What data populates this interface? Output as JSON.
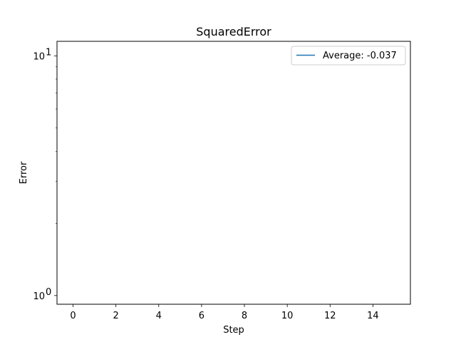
{
  "chart_data": {
    "type": "line",
    "title": "SquaredError",
    "xlabel": "Step",
    "ylabel": "Error",
    "yscale": "log",
    "xlim": [
      -0.75,
      15.75
    ],
    "ylim": [
      0.92,
      11.5
    ],
    "x_ticks": [
      0,
      2,
      4,
      6,
      8,
      10,
      12,
      14
    ],
    "x_tick_labels": [
      "0",
      "2",
      "4",
      "6",
      "8",
      "10",
      "12",
      "14"
    ],
    "y_major_ticks": [
      {
        "value": 1,
        "base": "10",
        "exp": "0"
      },
      {
        "value": 10,
        "base": "10",
        "exp": "1"
      }
    ],
    "y_minor_ticks": [
      2,
      3,
      4,
      5,
      6,
      7,
      8,
      9
    ],
    "grid": false,
    "legend_position": "top-right",
    "series": [
      {
        "name": "Average: -0.037",
        "color": "#1f77b4",
        "x": [],
        "y": []
      }
    ]
  }
}
